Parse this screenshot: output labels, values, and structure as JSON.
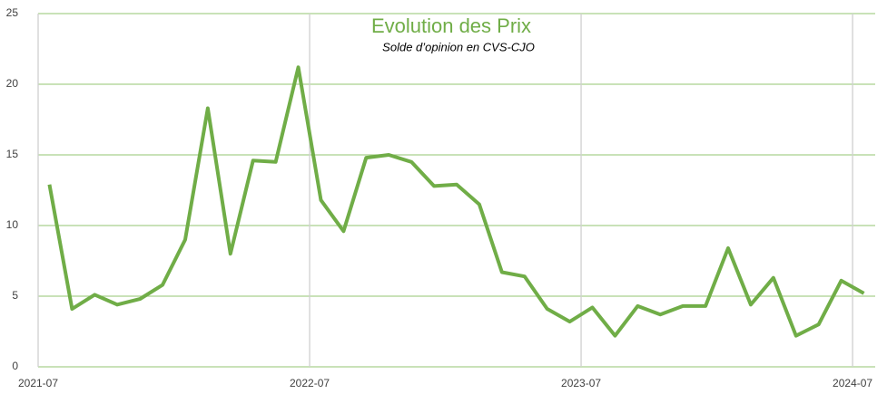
{
  "chart_data": {
    "type": "line",
    "title": "Evolution des Prix",
    "subtitle": "Solde d’opinion en CVS-CJO",
    "x": [
      "2021-07",
      "2021-08",
      "2021-09",
      "2021-10",
      "2021-11",
      "2021-12",
      "2022-01",
      "2022-02",
      "2022-03",
      "2022-04",
      "2022-05",
      "2022-06",
      "2022-07",
      "2022-08",
      "2022-09",
      "2022-10",
      "2022-11",
      "2022-12",
      "2023-01",
      "2023-02",
      "2023-03",
      "2023-04",
      "2023-05",
      "2023-06",
      "2023-07",
      "2023-08",
      "2023-09",
      "2023-10",
      "2023-11",
      "2023-12",
      "2024-01",
      "2024-02",
      "2024-03",
      "2024-04",
      "2024-05",
      "2024-06",
      "2024-07"
    ],
    "series": [
      {
        "name": "Evolution des Prix",
        "color": "#70ad47",
        "values": [
          12.9,
          4.1,
          5.1,
          4.4,
          4.8,
          5.8,
          9.0,
          18.3,
          8.0,
          14.6,
          14.5,
          21.2,
          11.8,
          9.6,
          14.8,
          15.0,
          14.5,
          12.8,
          12.9,
          11.5,
          6.7,
          6.4,
          4.1,
          3.2,
          4.2,
          2.2,
          4.3,
          3.7,
          4.3,
          4.3,
          8.4,
          4.4,
          6.3,
          2.2,
          3.0,
          6.1,
          5.2
        ]
      }
    ],
    "xlim": [
      "2021-07",
      "2024-08"
    ],
    "xticks": [
      "2021-07",
      "2022-07",
      "2023-07",
      "2024-07"
    ],
    "ylim": [
      0,
      25
    ],
    "yticks": [
      0,
      5,
      10,
      15,
      20,
      25
    ],
    "grid": true
  }
}
